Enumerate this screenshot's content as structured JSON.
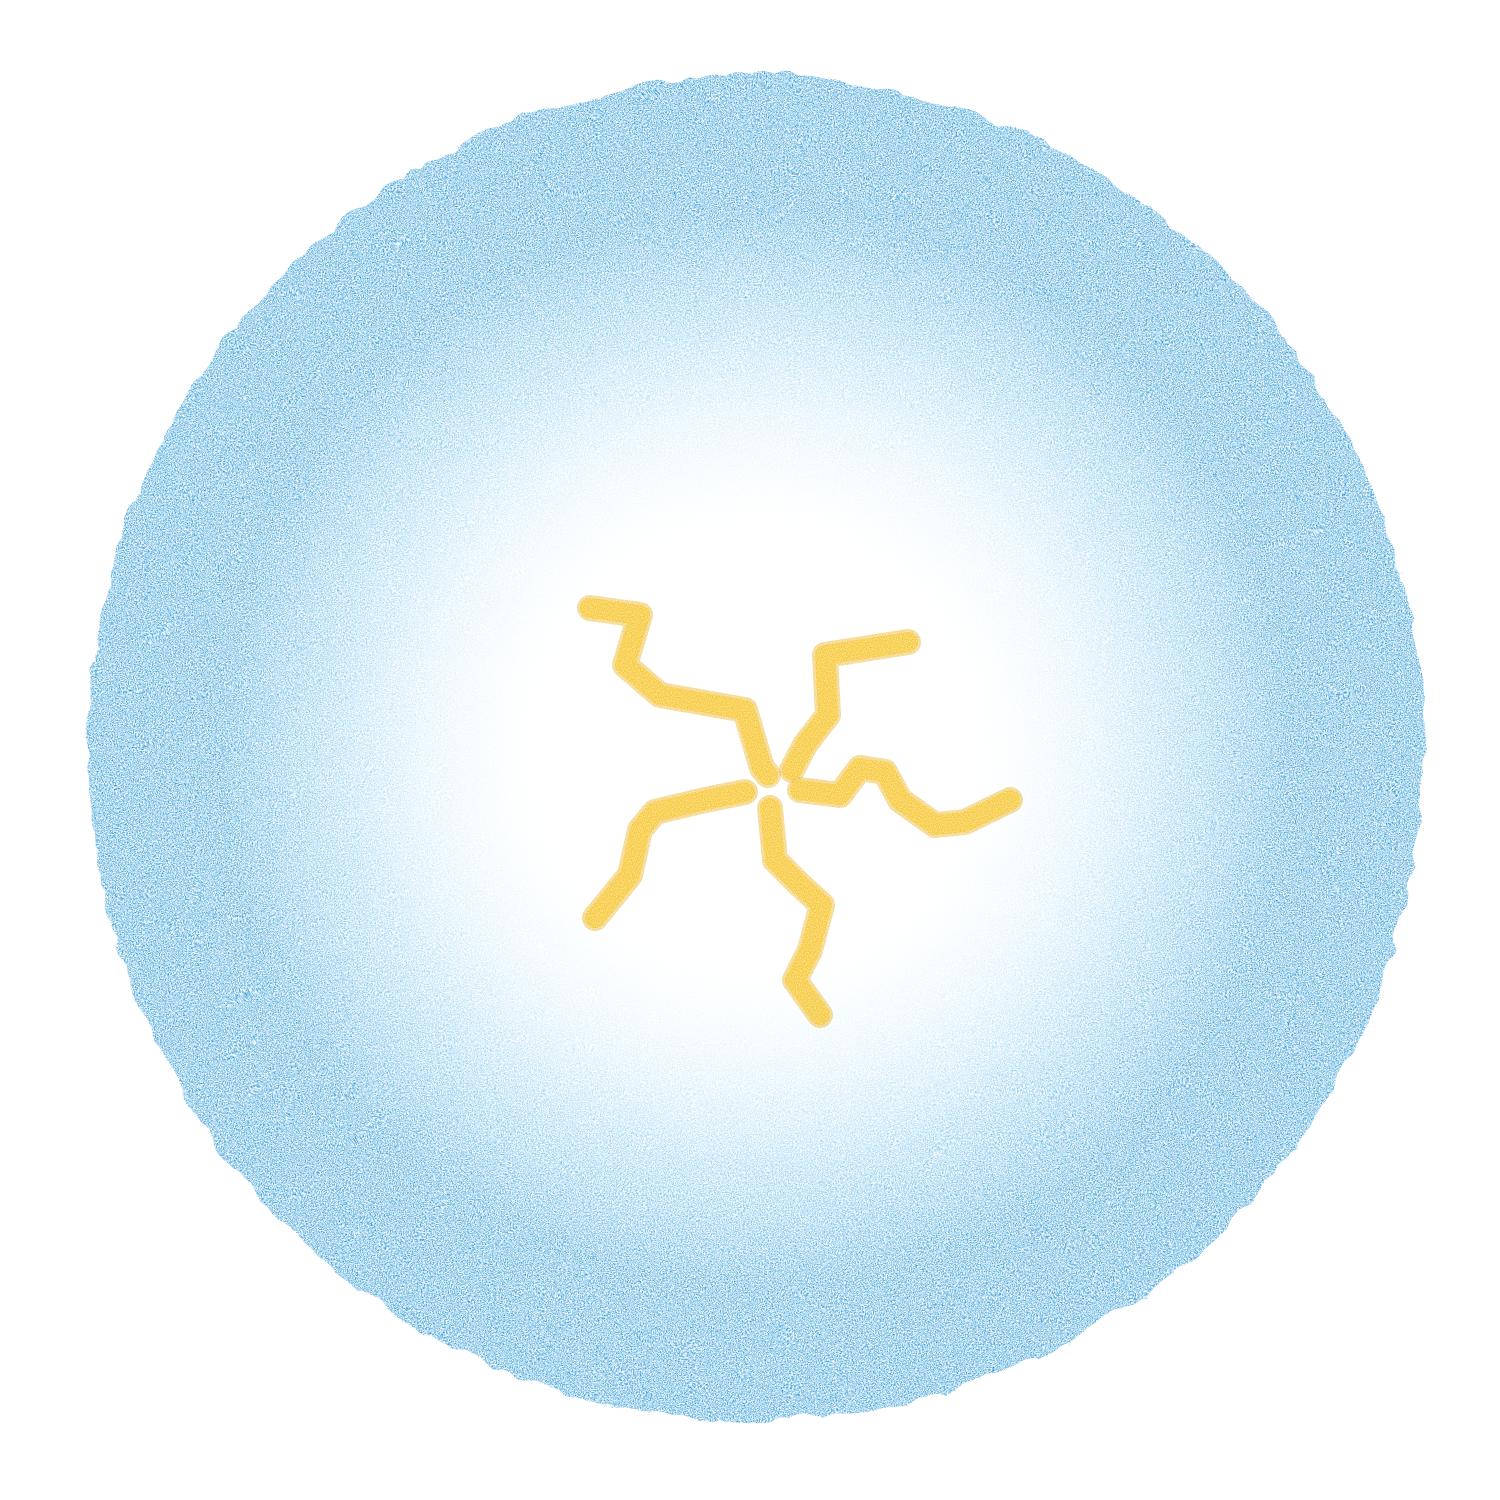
{
  "image": {
    "subject": "crayon-drawing",
    "elements": [
      {
        "name": "blue-ring",
        "shape": "textured-circle"
      },
      {
        "name": "yellow-swirl",
        "shape": "five-arm-spiral"
      }
    ]
  },
  "colors": {
    "background": "#ffffff",
    "ring_dark": "#1a8fd0",
    "ring_mid": "#4fb2e6",
    "ring_light": "#a9dcf4",
    "swirl": "#f5c01a",
    "swirl_dark": "#e8a800"
  }
}
